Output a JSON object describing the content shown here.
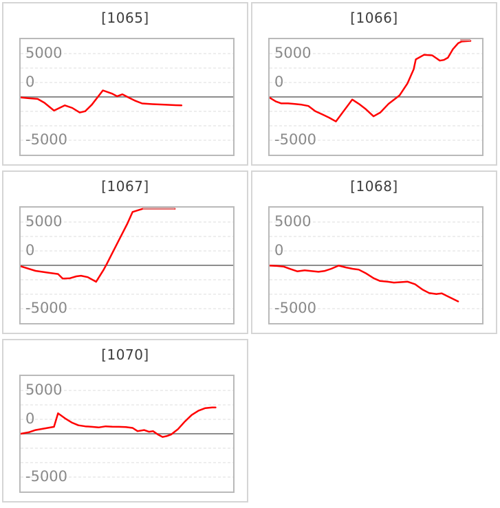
{
  "colors": {
    "series": "#ff0000",
    "series_clipped": "#dc9a9a",
    "grid": "#dcdcdc",
    "zero_line": "#8c8c8c",
    "plot_border": "#b9b9b9",
    "card_border": "#d5d5d5",
    "title_text": "#3c3c3c",
    "tick_text": "#8a8a8a"
  },
  "chart_data": {
    "type": "line",
    "unit_range": [
      -10000,
      10000
    ],
    "gridline_step": 2500,
    "gridline_values": [
      7500,
      5000,
      2500,
      -2500,
      -5000,
      -7500
    ],
    "zero_line_value": 0,
    "grid_on": true,
    "legend": "none",
    "xlabel": "",
    "ylabel": "",
    "y_ticks": [
      {
        "label": "5000",
        "pos_pct": 12.5
      },
      {
        "label": "0",
        "pos_pct": 37.5
      },
      {
        "label": "-5000",
        "pos_pct": 87.5
      }
    ],
    "charts": [
      {
        "title": "[1065]",
        "points": [
          [
            0,
            -100
          ],
          [
            3.8,
            -230
          ],
          [
            8,
            -340
          ],
          [
            11.2,
            -1010
          ],
          [
            15.7,
            -2370
          ],
          [
            20.8,
            -1460
          ],
          [
            24.3,
            -1910
          ],
          [
            27.8,
            -2700
          ],
          [
            30.4,
            -2480
          ],
          [
            33.5,
            -1350
          ],
          [
            38.7,
            1130
          ],
          [
            43.1,
            560
          ],
          [
            45.4,
            110
          ],
          [
            47.9,
            450
          ],
          [
            50.8,
            -110
          ],
          [
            54,
            -680
          ],
          [
            57.2,
            -1130
          ],
          [
            62,
            -1250
          ],
          [
            67.7,
            -1350
          ],
          [
            71.9,
            -1420
          ],
          [
            75.7,
            -1470
          ]
        ]
      },
      {
        "title": "[1066]",
        "points": [
          [
            0,
            -120
          ],
          [
            2.9,
            -780
          ],
          [
            5.5,
            -1120
          ],
          [
            8.7,
            -1120
          ],
          [
            11.9,
            -1230
          ],
          [
            15.1,
            -1340
          ],
          [
            18.3,
            -1570
          ],
          [
            21.5,
            -2460
          ],
          [
            24.8,
            -3020
          ],
          [
            28,
            -3580
          ],
          [
            31.2,
            -4250
          ],
          [
            38.9,
            -450
          ],
          [
            42.1,
            -1230
          ],
          [
            45.3,
            -2130
          ],
          [
            48.9,
            -3360
          ],
          [
            52.1,
            -2690
          ],
          [
            55.9,
            -1230
          ],
          [
            61.1,
            250
          ],
          [
            64.9,
            2350
          ],
          [
            67.8,
            4800
          ],
          [
            68.8,
            6500
          ],
          [
            72.7,
            7300
          ],
          [
            76.5,
            7200
          ],
          [
            80.1,
            6280
          ],
          [
            82,
            6400
          ],
          [
            83.9,
            6800
          ],
          [
            86.2,
            8250
          ],
          [
            88.7,
            9300
          ],
          [
            90.4,
            9600
          ],
          [
            94.5,
            9700
          ]
        ],
        "top_clip": [
          89.7,
          94.5
        ]
      },
      {
        "title": "[1067]",
        "points": [
          [
            0,
            -150
          ],
          [
            7,
            -950
          ],
          [
            13.4,
            -1300
          ],
          [
            17.6,
            -1500
          ],
          [
            19.8,
            -2300
          ],
          [
            23,
            -2250
          ],
          [
            26.2,
            -1900
          ],
          [
            28.4,
            -1800
          ],
          [
            31.6,
            -2050
          ],
          [
            35.5,
            -2850
          ],
          [
            39,
            -800
          ],
          [
            40.6,
            300
          ],
          [
            43.8,
            2600
          ],
          [
            47,
            4900
          ],
          [
            50.2,
            7200
          ],
          [
            52.7,
            9250
          ],
          [
            57.5,
            9800
          ],
          [
            72.5,
            9800
          ]
        ],
        "top_clip": [
          57.5,
          72.5
        ]
      },
      {
        "title": "[1068]",
        "points": [
          [
            0,
            -50
          ],
          [
            3.5,
            -110
          ],
          [
            6.5,
            -200
          ],
          [
            10,
            -670
          ],
          [
            13,
            -1040
          ],
          [
            16.5,
            -860
          ],
          [
            19.5,
            -980
          ],
          [
            23,
            -1120
          ],
          [
            26,
            -970
          ],
          [
            29,
            -590
          ],
          [
            32.5,
            -50
          ],
          [
            36,
            -370
          ],
          [
            39,
            -590
          ],
          [
            42,
            -750
          ],
          [
            45.5,
            -1420
          ],
          [
            49,
            -2240
          ],
          [
            52,
            -2720
          ],
          [
            55.5,
            -2830
          ],
          [
            58.5,
            -2990
          ],
          [
            62,
            -2900
          ],
          [
            65,
            -2830
          ],
          [
            68.5,
            -3280
          ],
          [
            72,
            -4220
          ],
          [
            75,
            -4780
          ],
          [
            78.5,
            -4960
          ],
          [
            81,
            -4850
          ],
          [
            84,
            -5400
          ],
          [
            88.7,
            -6250
          ]
        ]
      },
      {
        "title": "[1070]",
        "points": [
          [
            0,
            0
          ],
          [
            3.8,
            250
          ],
          [
            7,
            640
          ],
          [
            10.2,
            850
          ],
          [
            12.5,
            1000
          ],
          [
            15.7,
            1200
          ],
          [
            17.6,
            3550
          ],
          [
            20.8,
            2690
          ],
          [
            24,
            1950
          ],
          [
            27.2,
            1460
          ],
          [
            30.4,
            1280
          ],
          [
            33.5,
            1200
          ],
          [
            36.7,
            1090
          ],
          [
            40,
            1280
          ],
          [
            43.1,
            1230
          ],
          [
            46.3,
            1200
          ],
          [
            49.5,
            1160
          ],
          [
            52.7,
            1010
          ],
          [
            55,
            450
          ],
          [
            58.1,
            640
          ],
          [
            60.4,
            340
          ],
          [
            62.3,
            450
          ],
          [
            64.5,
            -110
          ],
          [
            66.8,
            -560
          ],
          [
            68.7,
            -400
          ],
          [
            70.9,
            -110
          ],
          [
            74.1,
            820
          ],
          [
            77.3,
            2130
          ],
          [
            80.5,
            3250
          ],
          [
            83.7,
            4000
          ],
          [
            86.9,
            4440
          ],
          [
            90.1,
            4550
          ],
          [
            91.7,
            4550
          ]
        ]
      }
    ]
  }
}
